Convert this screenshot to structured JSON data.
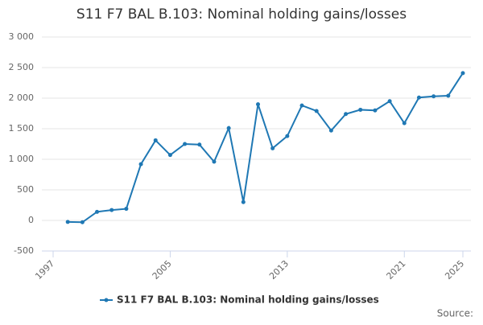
{
  "chart_data": {
    "type": "line",
    "title": "S11 F7 BAL B.103: Nominal holding gains/losses",
    "x": [
      1998,
      1999,
      2000,
      2001,
      2002,
      2003,
      2004,
      2005,
      2006,
      2007,
      2008,
      2009,
      2010,
      2011,
      2012,
      2013,
      2014,
      2015,
      2016,
      2017,
      2018,
      2019,
      2020,
      2021,
      2022,
      2023,
      2024,
      2025
    ],
    "series": [
      {
        "name": "S11 F7 BAL B.103: Nominal holding gains/losses",
        "color": "#1f78b4",
        "values": [
          -25,
          -30,
          140,
          170,
          190,
          920,
          1310,
          1070,
          1250,
          1240,
          960,
          1510,
          300,
          1900,
          1180,
          1380,
          1880,
          1790,
          1470,
          1740,
          1810,
          1800,
          1950,
          1590,
          2010,
          2030,
          2040,
          2410
        ]
      }
    ],
    "xlim": [
      1997,
      2025
    ],
    "xticks": [
      1997,
      2005,
      2013,
      2021,
      2025
    ],
    "ylim": [
      -500,
      3000
    ],
    "yticks": [
      -500,
      0,
      500,
      {
        "value": 1000,
        "label": "1 000"
      },
      {
        "value": 1500,
        "label": "1 500"
      },
      {
        "value": 2000,
        "label": "2 000"
      },
      {
        "value": 2500,
        "label": "2 500"
      },
      {
        "value": 3000,
        "label": "3 000"
      }
    ],
    "grid": true,
    "legend": "bottom",
    "source": "Source:"
  }
}
